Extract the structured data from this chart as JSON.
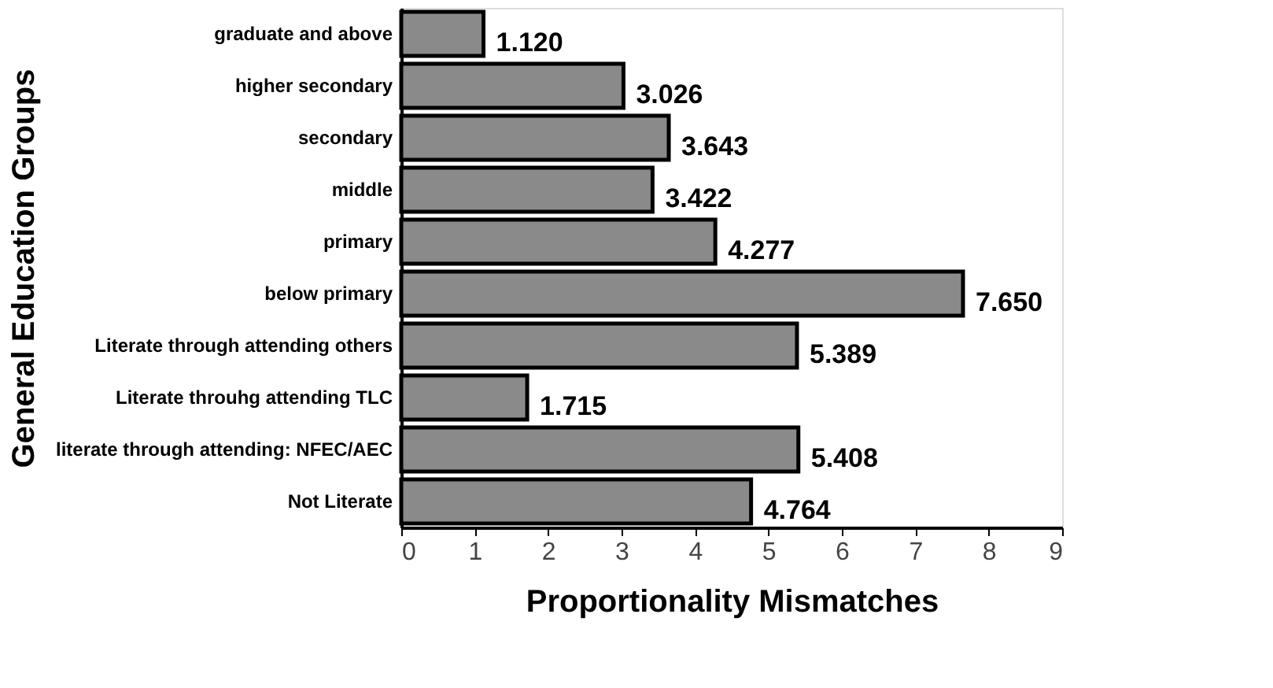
{
  "chart_data": {
    "type": "bar",
    "orientation": "horizontal",
    "xlabel": "Proportionality Mismatches",
    "ylabel": "General Education Groups",
    "categories": [
      "graduate and above",
      "higher secondary",
      "secondary",
      "middle",
      "primary",
      "below primary",
      "Literate through attending others",
      "Literate throuhg attending TLC",
      "literate through attending: NFEC/AEC",
      "Not Literate"
    ],
    "values": [
      1.12,
      3.026,
      3.643,
      3.422,
      4.277,
      7.65,
      5.389,
      1.715,
      5.408,
      4.764
    ],
    "value_labels": [
      "1.120",
      "3.026",
      "3.643",
      "3.422",
      "4.277",
      "7.650",
      "5.389",
      "1.715",
      "5.408",
      "4.764"
    ],
    "color": "#8a8a8a",
    "xlim": [
      0,
      9
    ],
    "xticks": [
      0,
      1,
      2,
      3,
      4,
      5,
      6,
      7,
      8,
      9
    ],
    "grid": false
  }
}
